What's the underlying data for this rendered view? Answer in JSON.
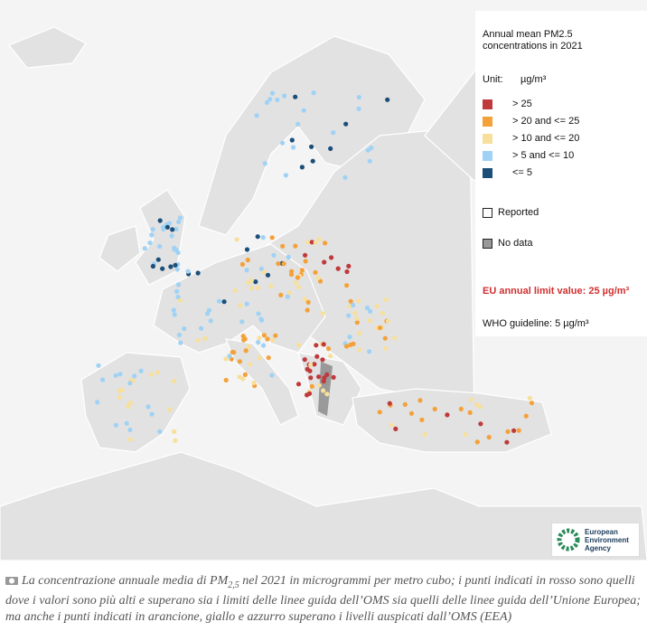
{
  "legend": {
    "title": "Annual mean PM2.5 concentrations in 2021",
    "unit_label": "Unit:",
    "unit": "µg/m³",
    "classes": [
      {
        "label": "> 25",
        "color": "#c0393b"
      },
      {
        "label": "> 20 and <= 25",
        "color": "#f4a13a"
      },
      {
        "label": "> 10 and <= 20",
        "color": "#f7df9c"
      },
      {
        "label": "> 5 and <= 10",
        "color": "#9fd2f5"
      },
      {
        "label": "<= 5",
        "color": "#1b4f7a"
      }
    ],
    "reported": "Reported",
    "no_data": "No data",
    "eu_limit": "EU annual limit value: 25 µg/m³",
    "who": "WHO guideline: 5 µg/m³"
  },
  "logo": {
    "lines": [
      "European",
      "Environment",
      "Agency"
    ]
  },
  "caption": {
    "before": "La concentrazione annuale media di PM",
    "subscript": "2,5",
    "after": " nel 2021 in microgrammi per metro cubo; i punti indicati in rosso sono quelli dove i valori sono più alti e superano sia i limiti delle linee guida dell’OMS sia quelli delle linee guida dell’Unione Europea; ma anche i punti indicati in arancione, giallo e azzurro superano i livelli auspicati dall’OMS (EEA)"
  }
}
